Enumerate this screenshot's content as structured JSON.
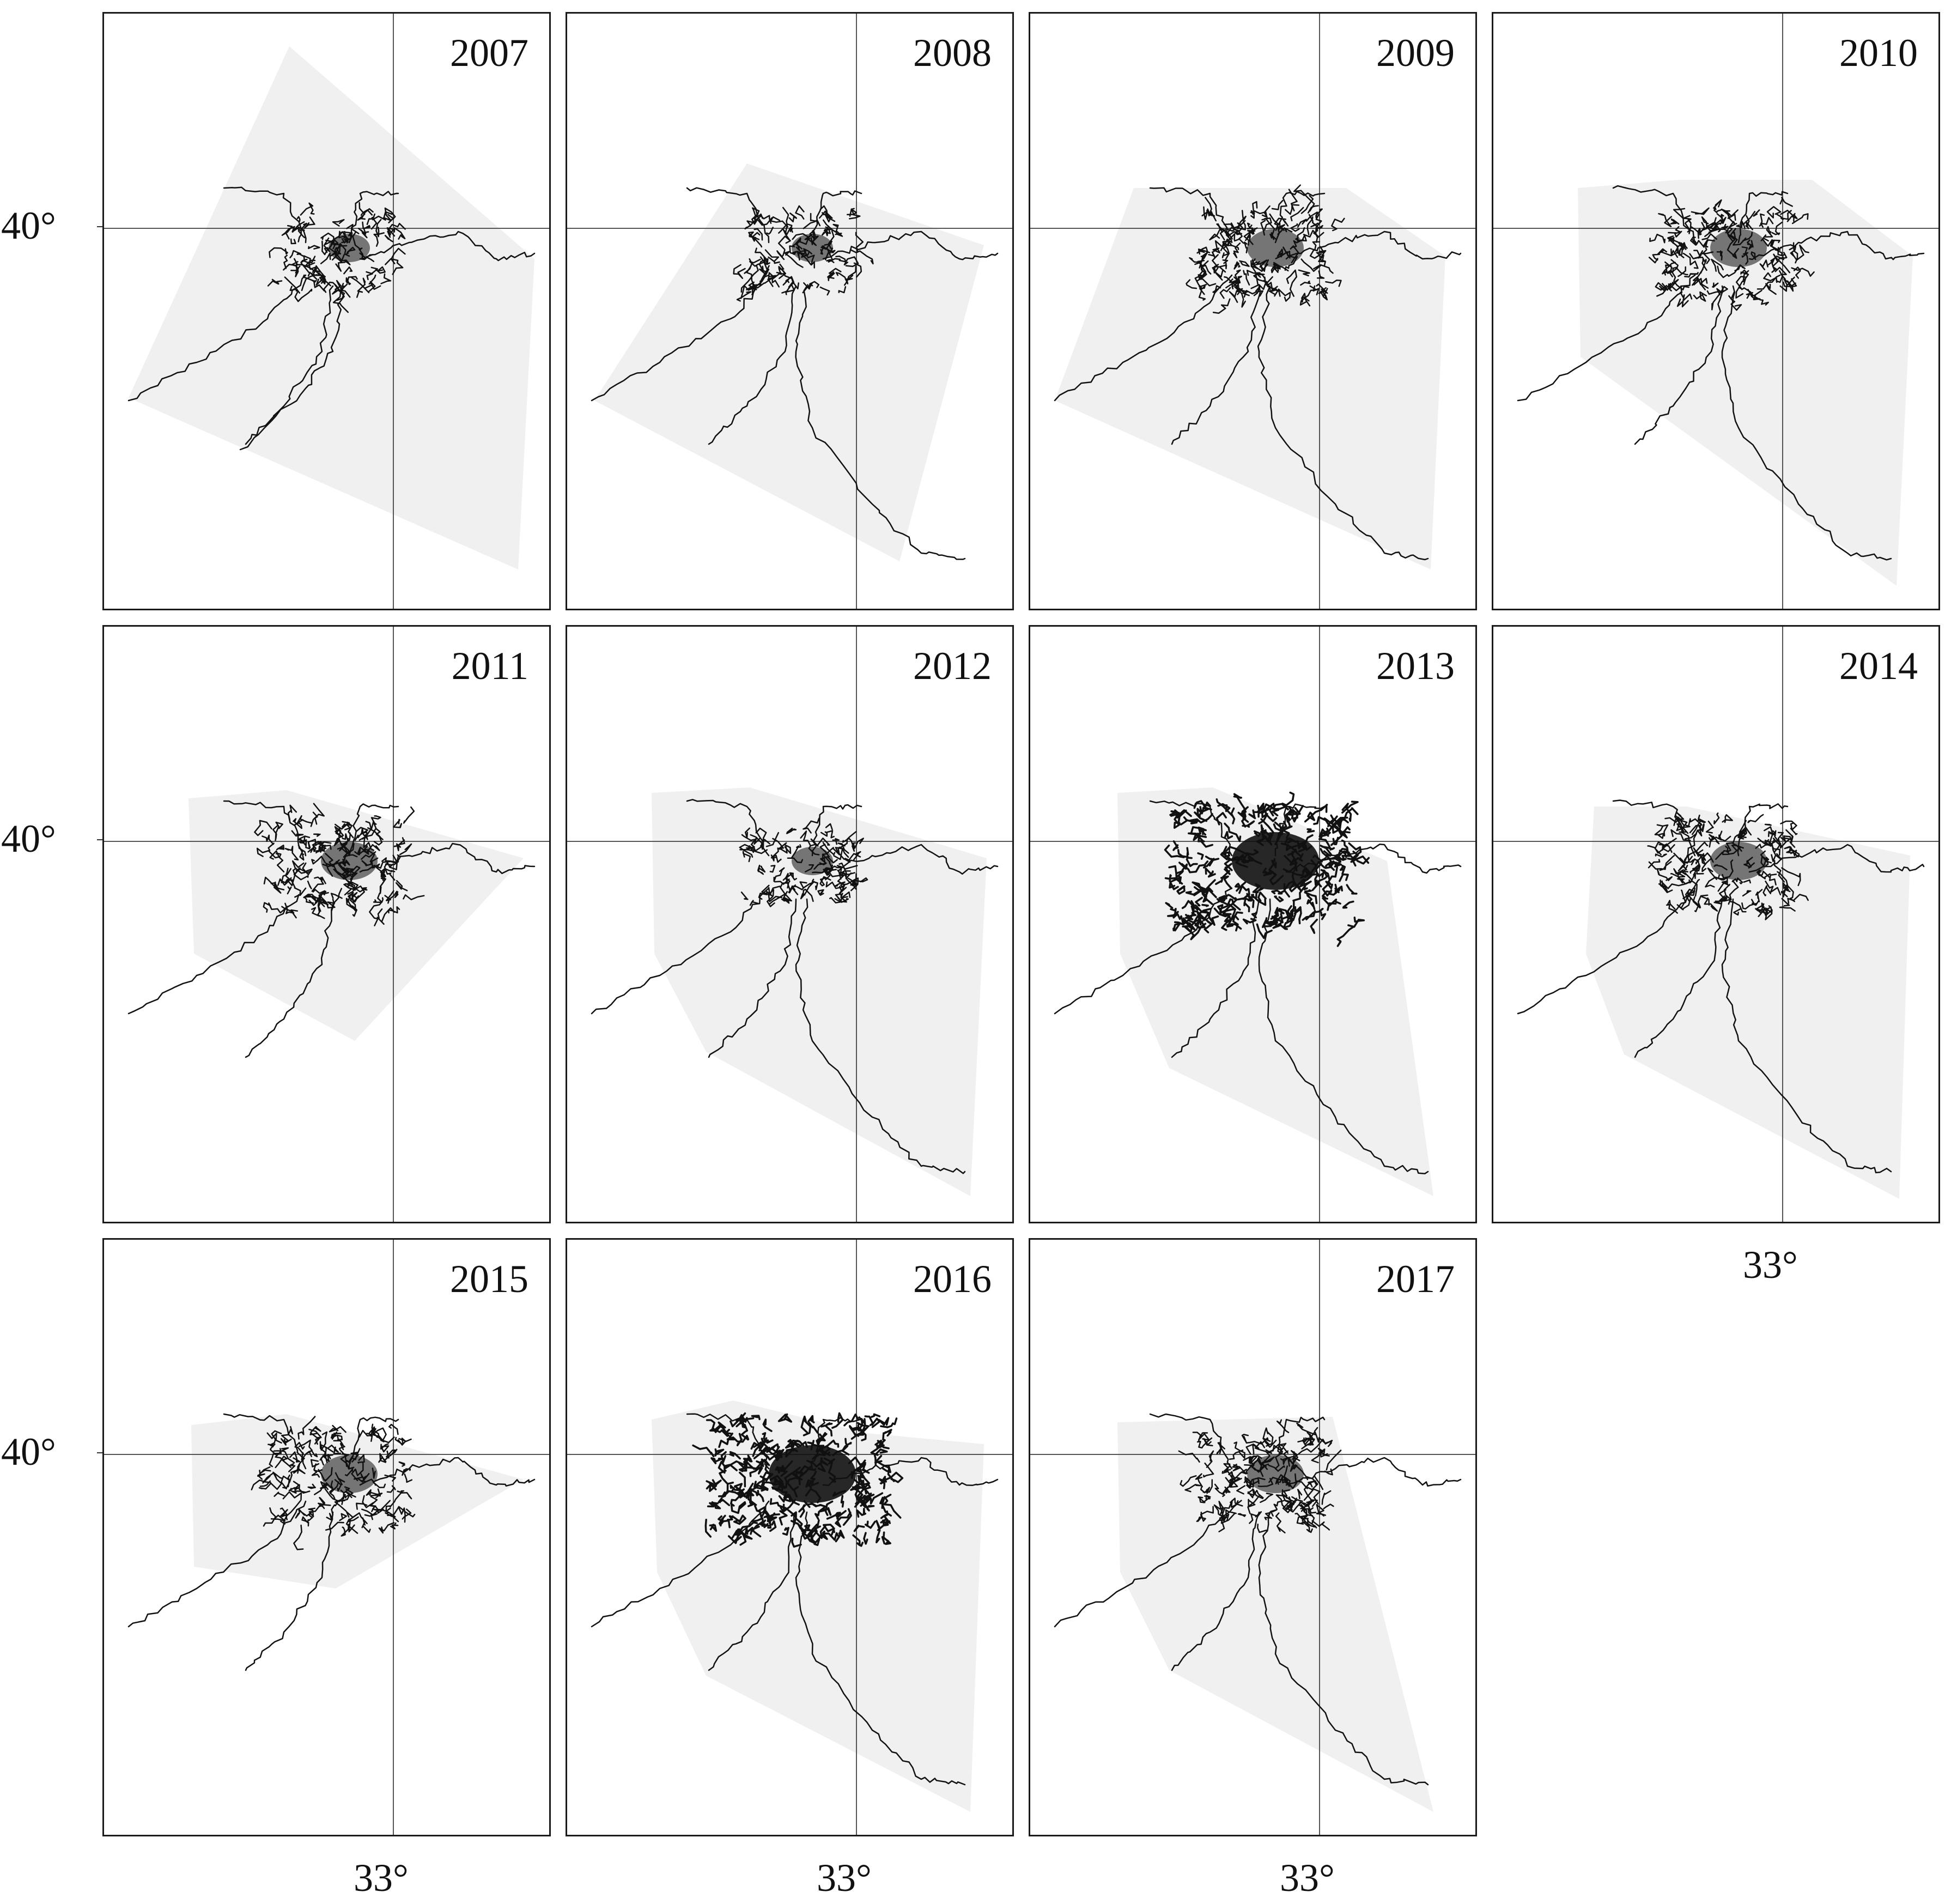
{
  "figure": {
    "lat_label": "40°",
    "lon_label": "33°",
    "fill_color": "#f0f0f0",
    "line_color": "#111111",
    "panels": [
      {
        "year": "2007",
        "variant": 0,
        "density": 2
      },
      {
        "year": "2008",
        "variant": 1,
        "density": 2
      },
      {
        "year": "2009",
        "variant": 2,
        "density": 3
      },
      {
        "year": "2010",
        "variant": 3,
        "density": 3
      },
      {
        "year": "2011",
        "variant": 4,
        "density": 3
      },
      {
        "year": "2012",
        "variant": 5,
        "density": 2
      },
      {
        "year": "2013",
        "variant": 6,
        "density": 5
      },
      {
        "year": "2014",
        "variant": 7,
        "density": 3
      },
      {
        "year": "2015",
        "variant": 8,
        "density": 3
      },
      {
        "year": "2016",
        "variant": 9,
        "density": 5
      },
      {
        "year": "2017",
        "variant": 10,
        "density": 3
      }
    ]
  }
}
